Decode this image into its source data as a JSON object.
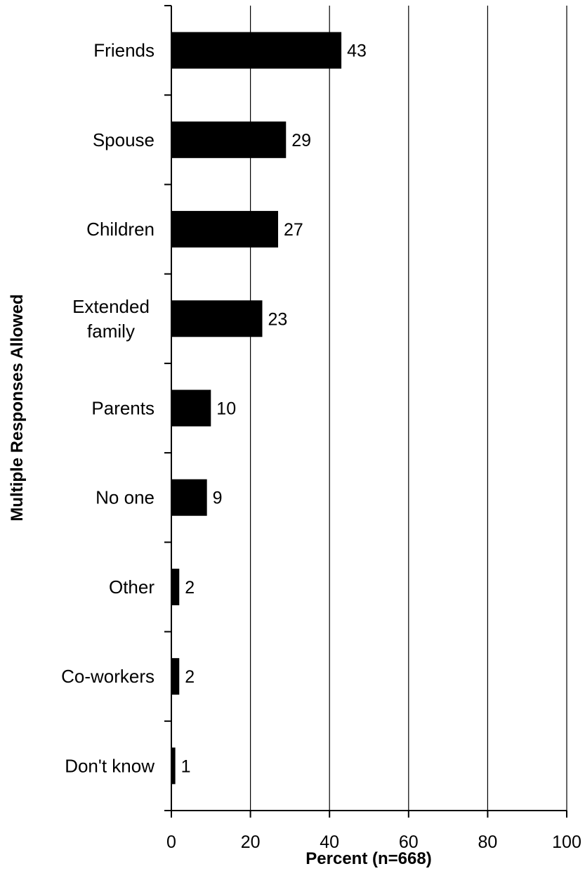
{
  "chart_data": {
    "type": "bar",
    "orientation": "horizontal",
    "categories": [
      "Friends",
      "Spouse",
      "Children",
      "Extended family",
      "Parents",
      "No one",
      "Other",
      "Co-workers",
      "Don't know"
    ],
    "category_lines": [
      [
        "Friends"
      ],
      [
        "Spouse"
      ],
      [
        "Children"
      ],
      [
        "Extended",
        "family"
      ],
      [
        "Parents"
      ],
      [
        "No one"
      ],
      [
        "Other"
      ],
      [
        "Co-workers"
      ],
      [
        "Don't know"
      ]
    ],
    "values": [
      43,
      29,
      27,
      23,
      10,
      9,
      2,
      2,
      1
    ],
    "data_labels": [
      "43",
      "29",
      "27",
      "23",
      "10",
      "9",
      "2",
      "2",
      "1"
    ],
    "xlabel": "Percent (n=668)",
    "ylabel": "Multiple Responses Allowed",
    "xlim": [
      0,
      100
    ],
    "xticks": [
      0,
      20,
      40,
      60,
      80,
      100
    ],
    "xtick_labels": [
      "0",
      "20",
      "40",
      "60",
      "80",
      "100"
    ],
    "grid": true,
    "legend": "none",
    "bar_color": "#000000"
  }
}
